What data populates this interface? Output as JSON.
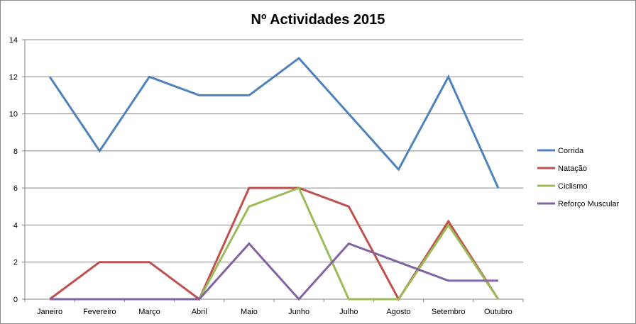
{
  "chart_data": {
    "type": "line",
    "title": "Nº Actividades 2015",
    "xlabel": "",
    "ylabel": "",
    "categories": [
      "Janeiro",
      "Fevereiro",
      "Março",
      "Abril",
      "Maio",
      "Junho",
      "Julho",
      "Agosto",
      "Setembro",
      "Outubro"
    ],
    "ylim": [
      0,
      14
    ],
    "yticks": [
      0,
      2,
      4,
      6,
      8,
      10,
      12,
      14
    ],
    "grid": true,
    "legend_position": "right",
    "series": [
      {
        "name": "Corrida",
        "color": "#4f81bd",
        "values": [
          12,
          8,
          12,
          11,
          11,
          13,
          10,
          7,
          12,
          6
        ]
      },
      {
        "name": "Natação",
        "color": "#c0504d",
        "values": [
          0,
          2,
          2,
          0,
          6,
          6,
          5,
          0,
          4.2,
          0
        ]
      },
      {
        "name": "Ciclismo",
        "color": "#9bbb59",
        "values": [
          0,
          0,
          0,
          0,
          5,
          6,
          0,
          0,
          4,
          0
        ]
      },
      {
        "name": "Reforço Muscular",
        "color": "#8064a2",
        "values": [
          0,
          0,
          0,
          0,
          3,
          0,
          3,
          2,
          1,
          1
        ]
      }
    ]
  }
}
